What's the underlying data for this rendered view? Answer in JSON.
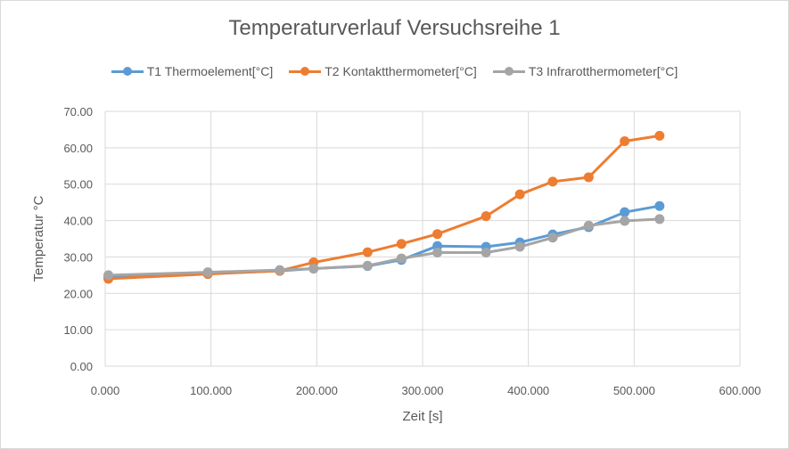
{
  "chart_data": {
    "type": "line",
    "title": "Temperaturverlauf Versuchsreihe 1",
    "xlabel": "Zeit [s]",
    "ylabel": "Temperatur °C",
    "xlim": [
      0,
      600
    ],
    "ylim": [
      0,
      70
    ],
    "x_ticks": [
      "0.000",
      "100.000",
      "200.000",
      "300.000",
      "400.000",
      "500.000",
      "600.000"
    ],
    "y_ticks": [
      "0.00",
      "10.00",
      "20.00",
      "30.00",
      "40.00",
      "50.00",
      "60.00",
      "70.00"
    ],
    "grid": true,
    "legend_position": "top",
    "series": [
      {
        "name": "T1 Thermoelement[°C]",
        "color": "#5b9bd5",
        "x": [
          3,
          97,
          165,
          197,
          248,
          280,
          314,
          360,
          392,
          423,
          457,
          491,
          524
        ],
        "y": [
          24.5,
          25.4,
          26.2,
          26.8,
          27.5,
          29.2,
          33.0,
          32.8,
          34.0,
          36.2,
          38.2,
          42.3,
          44.0
        ]
      },
      {
        "name": "T2 Kontaktthermometer[°C]",
        "color": "#ed7d31",
        "x": [
          3,
          97,
          165,
          197,
          248,
          280,
          314,
          360,
          392,
          423,
          457,
          491,
          524
        ],
        "y": [
          24.0,
          25.3,
          26.2,
          28.5,
          31.3,
          33.6,
          36.3,
          41.2,
          47.2,
          50.7,
          51.9,
          61.8,
          63.3
        ]
      },
      {
        "name": "T3 Infrarotthermometer[°C]",
        "color": "#a5a5a5",
        "x": [
          3,
          97,
          165,
          197,
          248,
          280,
          314,
          360,
          392,
          423,
          457,
          491,
          524
        ],
        "y": [
          25.0,
          25.8,
          26.4,
          26.8,
          27.6,
          29.6,
          31.2,
          31.2,
          32.8,
          35.3,
          38.6,
          39.9,
          40.4
        ]
      }
    ]
  }
}
